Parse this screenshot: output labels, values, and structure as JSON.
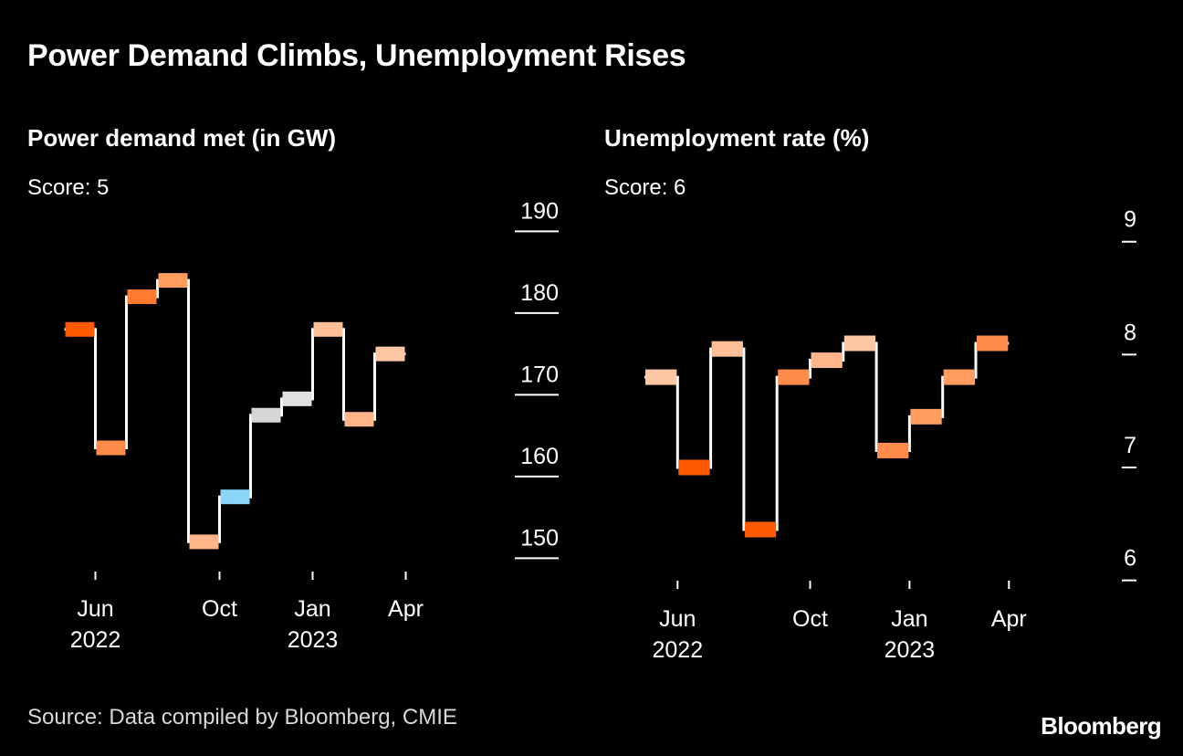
{
  "title": "Power Demand Climbs, Unemployment Rises",
  "source": "Source: Data compiled by Bloomberg, CMIE",
  "brand": "Bloomberg",
  "colors": {
    "background": "#000000",
    "line": "#ffffff",
    "axis": "#ffffff",
    "text": "#ffffff"
  },
  "chart_data": [
    {
      "type": "line",
      "subtitle": "Power demand met (in GW)",
      "score_label": "Score: 5",
      "x": [
        "2022-05",
        "2022-06",
        "2022-07",
        "2022-08",
        "2022-09",
        "2022-10",
        "2022-11",
        "2022-12",
        "2023-01",
        "2023-02",
        "2023-03",
        "2023-04"
      ],
      "values": [
        178.0,
        163.5,
        182.0,
        184.0,
        152.0,
        157.5,
        167.5,
        169.5,
        178.0,
        167.0,
        175.0,
        null
      ],
      "box_colors": [
        "#ff5a00",
        "#ff8c4a",
        "#ff7a30",
        "#ff9c5e",
        "#ffb48a",
        "#8ad4f8",
        "#d6d6d6",
        "#e0e0e0",
        "#ffbf98",
        "#ffb48a",
        "#ffc7a4",
        null
      ],
      "yticks": [
        190,
        180,
        170,
        160,
        150
      ],
      "ylim": [
        147.8,
        191.5
      ],
      "xticks": [
        {
          "month": "Jun",
          "year": "2022",
          "index": 1
        },
        {
          "month": "Oct",
          "year": "",
          "index": 5
        },
        {
          "month": "Jan",
          "year": "2023",
          "index": 8
        },
        {
          "month": "Apr",
          "year": "",
          "index": 11
        }
      ]
    },
    {
      "type": "line",
      "subtitle": "Unemployment rate (%)",
      "score_label": "Score: 6",
      "x": [
        "2022-05",
        "2022-06",
        "2022-07",
        "2022-08",
        "2022-09",
        "2022-10",
        "2022-11",
        "2022-12",
        "2023-01",
        "2023-02",
        "2023-03",
        "2023-04"
      ],
      "values": [
        7.8,
        7.0,
        8.05,
        6.45,
        7.8,
        7.95,
        8.1,
        7.15,
        7.45,
        7.8,
        8.1,
        null
      ],
      "box_colors": [
        "#ffc7a4",
        "#ff5a00",
        "#ffbf98",
        "#ff5a00",
        "#ff8c4a",
        "#ffb48a",
        "#ffc7a4",
        "#ff8c4a",
        "#ff9c5e",
        "#ff9c5e",
        "#ff8c4a",
        null
      ],
      "yticks": [
        9,
        8,
        7,
        6
      ],
      "ylim": [
        5.9,
        9.2
      ],
      "xticks": [
        {
          "month": "Jun",
          "year": "2022",
          "index": 1
        },
        {
          "month": "Oct",
          "year": "",
          "index": 5
        },
        {
          "month": "Jan",
          "year": "2023",
          "index": 8
        },
        {
          "month": "Apr",
          "year": "",
          "index": 11
        }
      ]
    }
  ]
}
